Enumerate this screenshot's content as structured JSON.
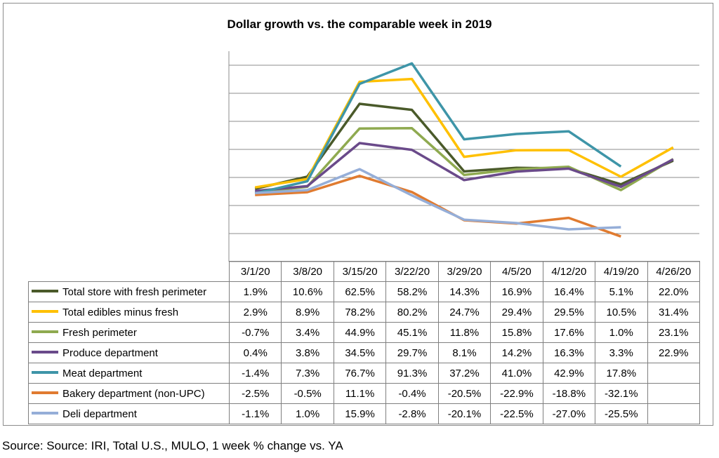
{
  "chart_data": {
    "type": "line",
    "title": "Dollar growth vs. the comparable week in 2019",
    "categories": [
      "3/1/20",
      "3/8/20",
      "3/15/20",
      "3/22/20",
      "3/29/20",
      "4/5/20",
      "4/12/20",
      "4/19/20",
      "4/26/20"
    ],
    "ylim": [
      -50,
      100
    ],
    "y_gridline_step": 20,
    "grid": true,
    "legend": "data table below chart",
    "series": [
      {
        "name": "Total store with fresh perimeter",
        "color": "#4a5a2a",
        "values": [
          1.9,
          10.6,
          62.5,
          58.2,
          14.3,
          16.9,
          16.4,
          5.1,
          22.0
        ],
        "labels": [
          "1.9%",
          "10.6%",
          "62.5%",
          "58.2%",
          "14.3%",
          "16.9%",
          "16.4%",
          "5.1%",
          "22.0%"
        ]
      },
      {
        "name": "Total edibles minus fresh",
        "color": "#ffc000",
        "values": [
          2.9,
          8.9,
          78.2,
          80.2,
          24.7,
          29.4,
          29.5,
          10.5,
          31.4
        ],
        "labels": [
          "2.9%",
          "8.9%",
          "78.2%",
          "80.2%",
          "24.7%",
          "29.4%",
          "29.5%",
          "10.5%",
          "31.4%"
        ]
      },
      {
        "name": "Fresh perimeter",
        "color": "#8faa50",
        "values": [
          -0.7,
          3.4,
          44.9,
          45.1,
          11.8,
          15.8,
          17.6,
          1.0,
          23.1
        ],
        "labels": [
          "-0.7%",
          "3.4%",
          "44.9%",
          "45.1%",
          "11.8%",
          "15.8%",
          "17.6%",
          "1.0%",
          "23.1%"
        ]
      },
      {
        "name": "Produce department",
        "color": "#6a4a8a",
        "values": [
          0.4,
          3.8,
          34.5,
          29.7,
          8.1,
          14.2,
          16.3,
          3.3,
          22.9
        ],
        "labels": [
          "0.4%",
          "3.8%",
          "34.5%",
          "29.7%",
          "8.1%",
          "14.2%",
          "16.3%",
          "3.3%",
          "22.9%"
        ]
      },
      {
        "name": "Meat department",
        "color": "#3e95a8",
        "values": [
          -1.4,
          7.3,
          76.7,
          91.3,
          37.2,
          41.0,
          42.9,
          17.8,
          null
        ],
        "labels": [
          "-1.4%",
          "7.3%",
          "76.7%",
          "91.3%",
          "37.2%",
          "41.0%",
          "42.9%",
          "17.8%",
          ""
        ]
      },
      {
        "name": "Bakery department (non-UPC)",
        "color": "#e07b30",
        "values": [
          -2.5,
          -0.5,
          11.1,
          -0.4,
          -20.5,
          -22.9,
          -18.8,
          -32.1,
          null
        ],
        "labels": [
          "-2.5%",
          "-0.5%",
          "11.1%",
          "-0.4%",
          "-20.5%",
          "-22.9%",
          "-18.8%",
          "-32.1%",
          ""
        ]
      },
      {
        "name": "Deli department",
        "color": "#95aed8",
        "values": [
          -1.1,
          1.0,
          15.9,
          -2.8,
          -20.1,
          -22.5,
          -27.0,
          -25.5,
          null
        ],
        "labels": [
          "-1.1%",
          "1.0%",
          "15.9%",
          "-2.8%",
          "-20.1%",
          "-22.5%",
          "-27.0%",
          "-25.5%",
          ""
        ]
      }
    ]
  },
  "source": "Source: Source: IRI, Total U.S., MULO, 1 week % change vs. YA"
}
